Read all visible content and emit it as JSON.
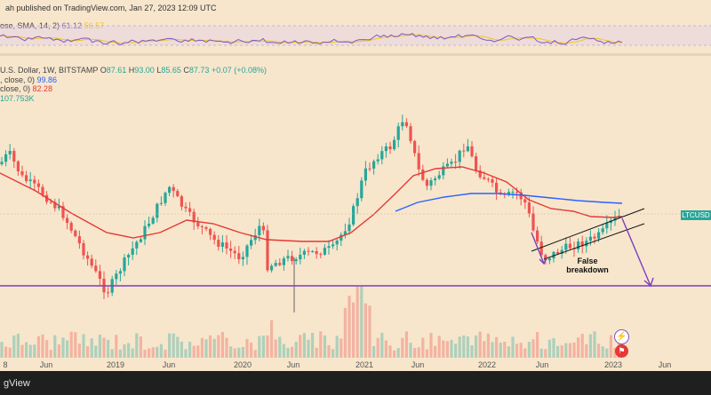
{
  "header": {
    "published_text": "ah published on TradingView.com, Jan 27, 2023 12:09 UTC"
  },
  "rsi_panel": {
    "label": "ose, SMA, 14, 2)",
    "rsi_value": "61.12",
    "sma_value": "56.57",
    "colors": {
      "rsi": "#7e57c2",
      "sma": "#f5c518",
      "band": "#d9c8f0"
    }
  },
  "main_legend": {
    "symbol_line": "U.S. Dollar, 1W, BITSTAMP",
    "o_label": "O",
    "o_value": "87.61",
    "h_label": "H",
    "h_value": "93.00",
    "l_label": "L",
    "l_value": "85.65",
    "c_label": "C",
    "c_value": "87.73",
    "change": "+0.07 (+0.08%)",
    "ma1_label": ", close, 0)",
    "ma1_value": "99.86",
    "ma2_label": "close, 0)",
    "ma2_value": "82.28",
    "vol_value": "107.753K"
  },
  "price_tag": {
    "symbol": "LTCUSD",
    "color": "#26a69a"
  },
  "annotation": {
    "line1": "False",
    "line2": "breakdown"
  },
  "x_axis": {
    "labels": [
      "8",
      "Jun",
      "2019",
      "Jun",
      "2020",
      "Jun",
      "2021",
      "Jun",
      "2022",
      "Jun",
      "2023",
      "Jun"
    ]
  },
  "footer": {
    "brand": "gView"
  },
  "icons": {
    "event1": "lightning-icon",
    "event2": "us-flag-icon"
  },
  "colors": {
    "up": "#26a69a",
    "down": "#ef5350",
    "ma50": "#e53935",
    "ma200": "#2962ff",
    "support": "#7b3fbf",
    "background": "#f7e6cc"
  }
}
